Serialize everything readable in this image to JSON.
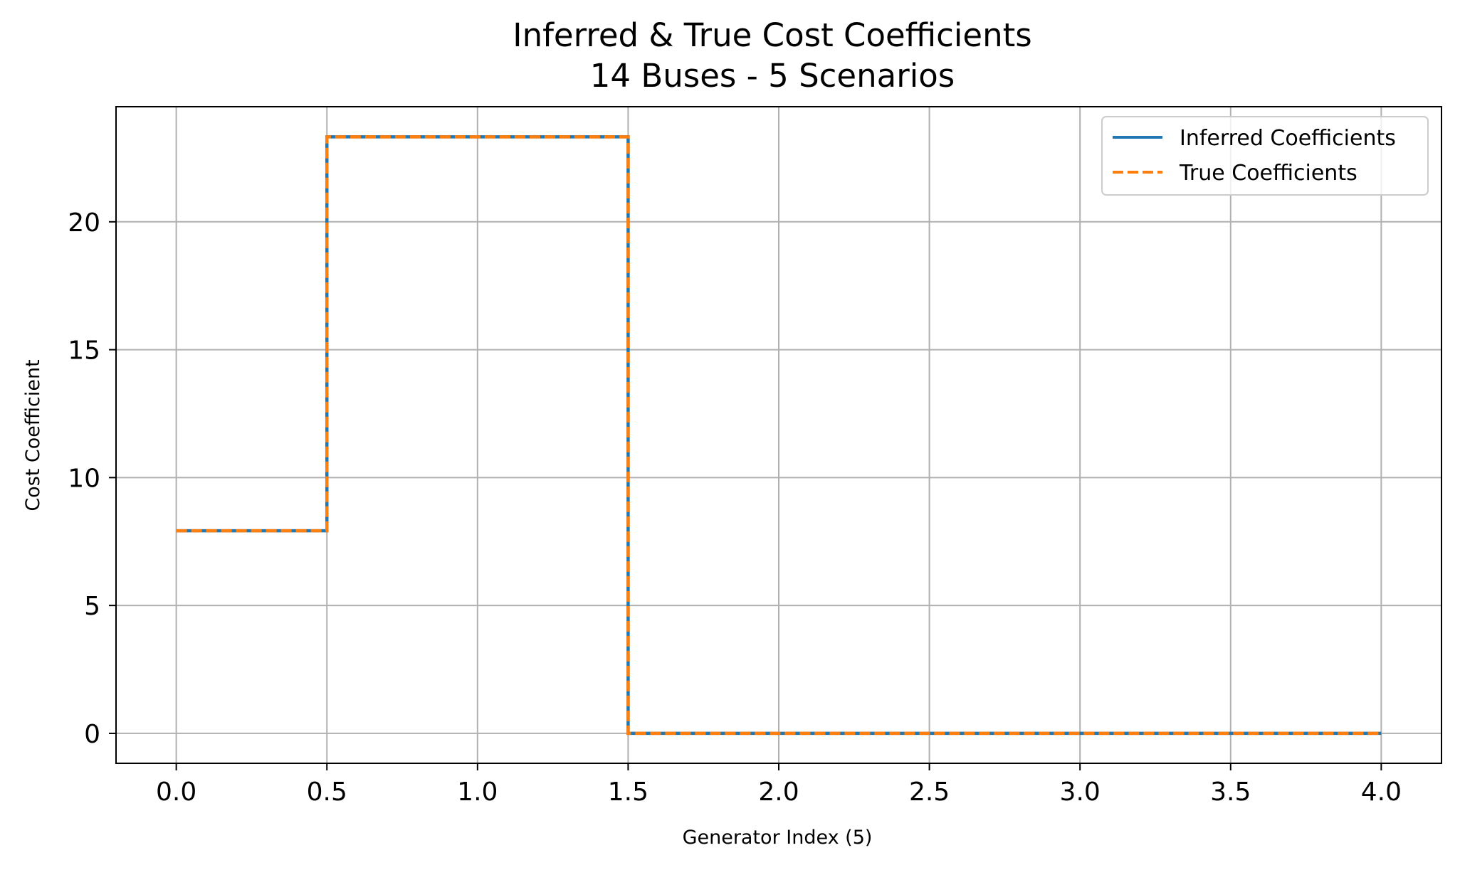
{
  "chart_data": {
    "type": "line",
    "title": "Inferred & True Cost Coefficients",
    "subtitle": "14 Buses - 5 Scenarios",
    "xlabel": "Generator Index (5)",
    "ylabel": "Cost Coefficient",
    "xlim": [
      -0.2,
      4.2
    ],
    "ylim": [
      -1.17,
      24.5
    ],
    "xticks": [
      0.0,
      0.5,
      1.0,
      1.5,
      2.0,
      2.5,
      3.0,
      3.5,
      4.0
    ],
    "xtick_labels": [
      "0.0",
      "0.5",
      "1.0",
      "1.5",
      "2.0",
      "2.5",
      "3.0",
      "3.5",
      "4.0"
    ],
    "yticks": [
      0,
      5,
      10,
      15,
      20
    ],
    "ytick_labels": [
      "0",
      "5",
      "10",
      "15",
      "20"
    ],
    "grid": true,
    "legend_position": "top-right",
    "step_where": "mid",
    "x": [
      0,
      1,
      2,
      3,
      4
    ],
    "series": [
      {
        "name": "Inferred Coefficients",
        "color": "#1f77b4",
        "style": "solid",
        "values": [
          7.92,
          23.32,
          0,
          0,
          0
        ]
      },
      {
        "name": "True Coefficients",
        "color": "#ff7f0e",
        "style": "dashed",
        "values": [
          7.92,
          23.32,
          0,
          0,
          0
        ]
      }
    ]
  }
}
